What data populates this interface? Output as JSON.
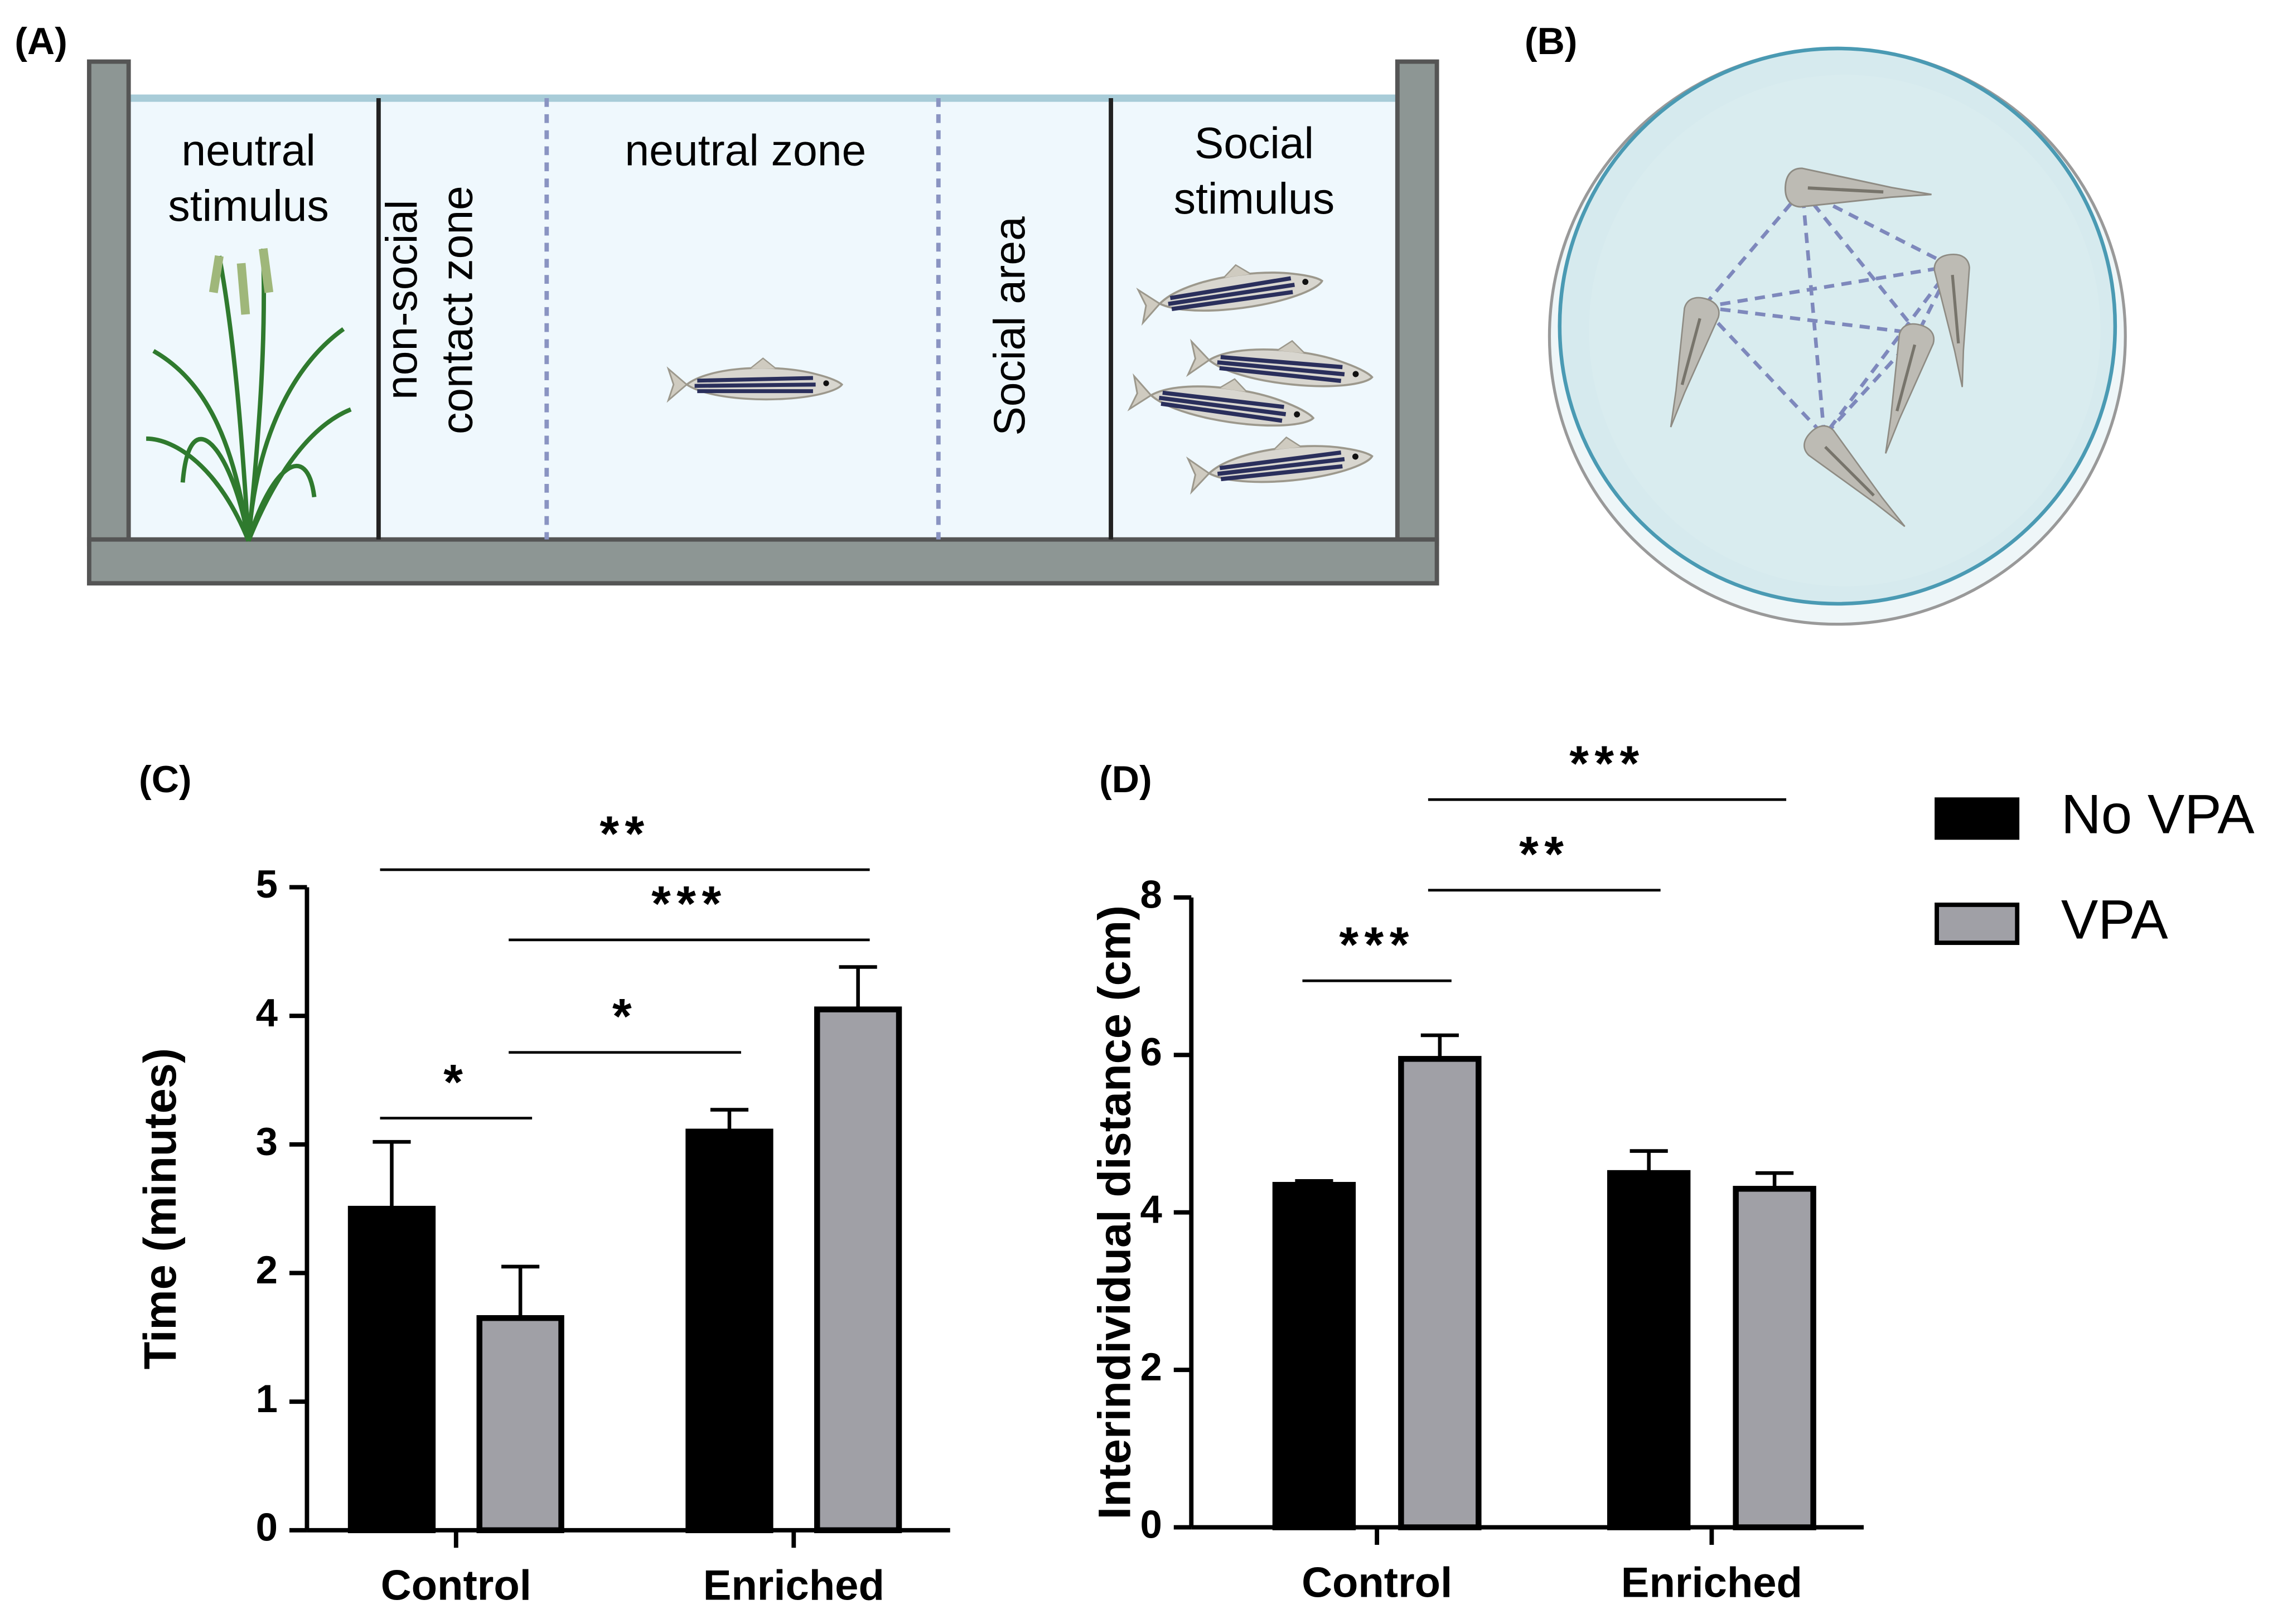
{
  "panels": [
    "(A)",
    "(B)"
  ],
  "diagram_a": {
    "neutral_stimulus": [
      "neutral",
      "stimulus"
    ],
    "contact_zone": [
      "non-social",
      "contact zone"
    ],
    "neutral_zone": "neutral zone",
    "social_area": "Social area",
    "social_stimulus": [
      "Social",
      "stimulus"
    ]
  },
  "chart_data": [
    {
      "type": "bar",
      "panel": "(C)",
      "y_label": "Time (minutes)",
      "categories": [
        "Control",
        "Enriched"
      ],
      "series": [
        {
          "name": "No VPA",
          "color": "#000000",
          "values": [
            2.5,
            3.1
          ],
          "errors": [
            0.52,
            0.17
          ]
        },
        {
          "name": "VPA",
          "color": "#a0a0a6",
          "values": [
            1.65,
            4.05
          ],
          "errors": [
            0.4,
            0.33
          ]
        }
      ],
      "ylim": [
        0,
        5
      ],
      "yticks": [
        0,
        1,
        2,
        3,
        4,
        5
      ],
      "annotations": [
        "**",
        "***",
        "*",
        "*"
      ]
    },
    {
      "type": "bar",
      "panel": "(D)",
      "y_label": "Interindividual distance (cm)",
      "categories": [
        "Control",
        "Enriched"
      ],
      "series": [
        {
          "name": "No VPA",
          "color": "#000000",
          "values": [
            4.35,
            4.5
          ],
          "errors": [
            0.05,
            0.28
          ]
        },
        {
          "name": "VPA",
          "color": "#a0a0a6",
          "values": [
            5.95,
            4.3
          ],
          "errors": [
            0.3,
            0.2
          ]
        }
      ],
      "ylim": [
        0,
        8
      ],
      "yticks": [
        0,
        2,
        4,
        6,
        8
      ],
      "annotations": [
        "***",
        "**",
        "***"
      ]
    }
  ]
}
